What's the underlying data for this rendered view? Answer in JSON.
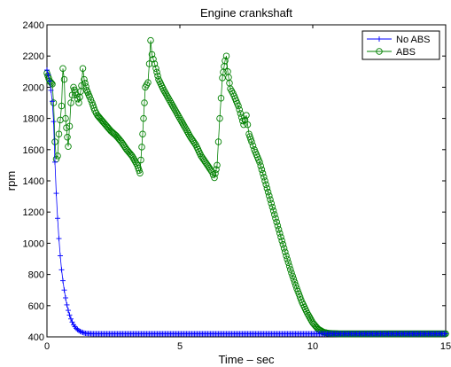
{
  "chart_data": {
    "type": "line",
    "title": "Engine crankshaft",
    "xlabel": "Time – sec",
    "ylabel": "rpm",
    "xlim": [
      0,
      15
    ],
    "ylim": [
      400,
      2400
    ],
    "xticks": [
      0,
      5,
      10,
      15
    ],
    "yticks": [
      400,
      600,
      800,
      1000,
      1200,
      1400,
      1600,
      1800,
      2000,
      2200,
      2400
    ],
    "grid": false,
    "legend": "top-right",
    "series": [
      {
        "name": "No ABS",
        "color": "#0000ff",
        "marker": "plus",
        "x": [
          0,
          0.05,
          0.1,
          0.15,
          0.2,
          0.25,
          0.3,
          0.35,
          0.4,
          0.45,
          0.5,
          0.55,
          0.6,
          0.65,
          0.7,
          0.75,
          0.8,
          0.85,
          0.9,
          0.95,
          1.0,
          1.05,
          1.1,
          1.15,
          1.2,
          1.25,
          1.3,
          1.35,
          1.4,
          1.45,
          1.5,
          1.6,
          1.7,
          1.8,
          1.9,
          2.0,
          2.5,
          3,
          4,
          5,
          6,
          7,
          8,
          9,
          10,
          11,
          12,
          13,
          14,
          15
        ],
        "y": [
          2110,
          2080,
          2040,
          1980,
          1910,
          1780,
          1520,
          1320,
          1160,
          1030,
          920,
          830,
          760,
          700,
          650,
          605,
          570,
          540,
          515,
          495,
          478,
          465,
          455,
          447,
          440,
          435,
          431,
          428,
          425,
          423,
          422,
          421,
          420,
          420,
          420,
          420,
          420,
          420,
          420,
          420,
          420,
          420,
          420,
          420,
          420,
          420,
          420,
          420,
          420,
          420
        ]
      },
      {
        "name": "ABS",
        "color": "#008000",
        "marker": "circle",
        "x": [
          0,
          0.1,
          0.2,
          0.25,
          0.3,
          0.35,
          0.4,
          0.45,
          0.5,
          0.55,
          0.6,
          0.65,
          0.7,
          0.8,
          0.85,
          0.9,
          1.0,
          1.1,
          1.2,
          1.3,
          1.35,
          1.4,
          1.5,
          1.6,
          1.7,
          1.8,
          1.9,
          2.0,
          2.2,
          2.4,
          2.6,
          2.8,
          3.0,
          3.2,
          3.4,
          3.5,
          3.6,
          3.7,
          3.8,
          3.85,
          3.9,
          3.95,
          4.0,
          4.1,
          4.2,
          4.4,
          4.6,
          4.8,
          5.0,
          5.2,
          5.4,
          5.6,
          5.8,
          6.0,
          6.2,
          6.3,
          6.4,
          6.5,
          6.6,
          6.7,
          6.75,
          6.8,
          6.9,
          7.0,
          7.2,
          7.4,
          7.5,
          7.6,
          7.7,
          7.8,
          8.0,
          8.2,
          8.4,
          8.6,
          8.8,
          9.0,
          9.2,
          9.4,
          9.6,
          9.8,
          10.0,
          10.2,
          10.4,
          10.6,
          10.8,
          11.0,
          11.2,
          12,
          13,
          14,
          15
        ],
        "y": [
          2090,
          2040,
          2020,
          1900,
          1650,
          1540,
          1560,
          1700,
          1790,
          1880,
          2120,
          2050,
          1800,
          1620,
          1750,
          1900,
          2000,
          1950,
          1900,
          2010,
          2120,
          2050,
          1980,
          1940,
          1900,
          1850,
          1820,
          1800,
          1760,
          1720,
          1690,
          1650,
          1600,
          1560,
          1500,
          1450,
          1700,
          2000,
          2030,
          2150,
          2300,
          2210,
          2180,
          2120,
          2050,
          1980,
          1920,
          1860,
          1800,
          1740,
          1680,
          1630,
          1560,
          1510,
          1460,
          1420,
          1500,
          1800,
          2060,
          2170,
          2200,
          2100,
          1990,
          1960,
          1880,
          1760,
          1820,
          1700,
          1650,
          1600,
          1520,
          1400,
          1280,
          1160,
          1040,
          920,
          810,
          710,
          620,
          550,
          490,
          450,
          430,
          423,
          421,
          420,
          420,
          420,
          420,
          420,
          420
        ]
      }
    ]
  }
}
